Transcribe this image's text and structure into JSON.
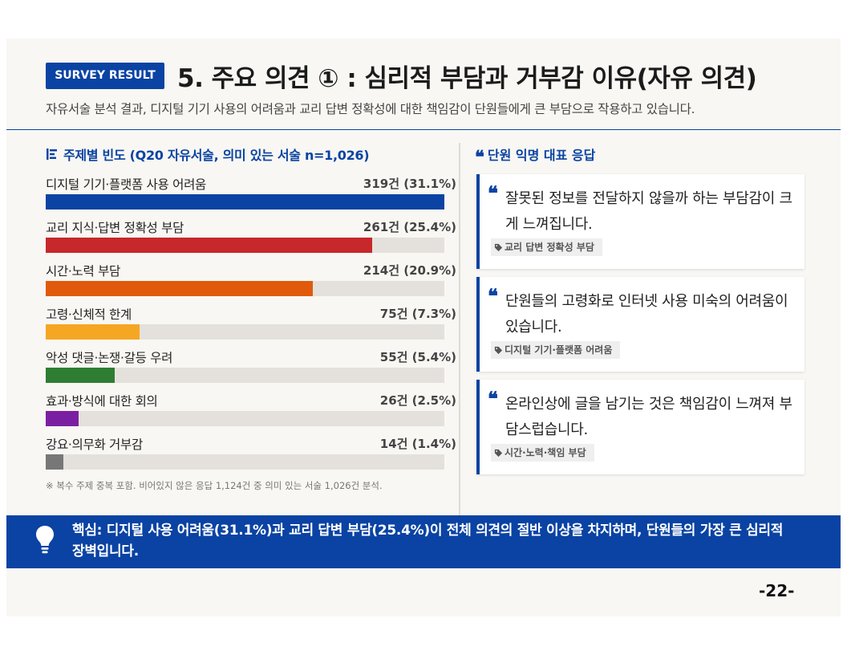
{
  "header": {
    "badge": "SURVEY RESULT",
    "title": "5. 주요 의견 ① : 심리적 부담과 거부감 이유(자유 의견)",
    "subtitle": "자유서술 분석 결과, 디지털 기기 사용의 어려움과 교리 답변 정확성에 대한 책임감이 단원들에게 큰 부담으로 작용하고 있습니다."
  },
  "left": {
    "heading": "주제별 빈도 (Q20 자유서술, 의미 있는 서술 n=1,026)",
    "note": "※ 복수 주제 중복 포함. 비어있지 않은 응답 1,124건 중 의미 있는 서술 1,026건 분석."
  },
  "chart_data": {
    "type": "bar",
    "orientation": "horizontal",
    "categories": [
      "디지털 기기·플랫폼 사용 어려움",
      "교리 지식·답변 정확성 부담",
      "시간·노력 부담",
      "고령·신체적 한계",
      "악성 댓글·논쟁·갈등 우려",
      "효과·방식에 대한 회의",
      "강요·의무화 거부감"
    ],
    "counts": [
      319,
      261,
      214,
      75,
      55,
      26,
      14
    ],
    "percents": [
      31.1,
      25.4,
      20.9,
      7.3,
      5.4,
      2.5,
      1.4
    ],
    "value_labels": [
      "319건 (31.1%)",
      "261건 (25.4%)",
      "214건 (20.9%)",
      "75건 (7.3%)",
      "55건 (5.4%)",
      "26건 (2.5%)",
      "14건 (1.4%)"
    ],
    "colors": [
      "#0a43a3",
      "#c6282b",
      "#e15a0b",
      "#f5a623",
      "#2e7d32",
      "#7b1fa2",
      "#777777"
    ],
    "xlim": [
      0,
      319
    ]
  },
  "right": {
    "heading": "단원 익명 대표 응답",
    "quotes": [
      {
        "text": "잘못된 정보를 전달하지 않을까 하는 부담감이 크게 느껴집니다.",
        "tag": "교리 답변 정확성 부담"
      },
      {
        "text": "단원들의 고령화로 인터넷 사용 미숙의 어려움이 있습니다.",
        "tag": "디지털 기기·플랫폼 어려움"
      },
      {
        "text": "온라인상에 글을 남기는 것은 책임감이 느껴져 부담스럽습니다.",
        "tag": "시간·노력·책임 부담"
      }
    ]
  },
  "banner": {
    "text": "핵심: 디지털 사용 어려움(31.1%)과 교리 답변 부담(25.4%)이 전체 의견의 절반 이상을 차지하며, 단원들의 가장 큰 심리적 장벽입니다."
  },
  "footer": {
    "page": "-22-"
  }
}
